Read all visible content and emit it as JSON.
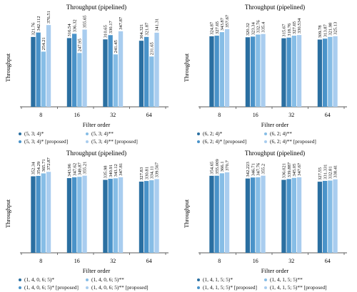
{
  "colors": [
    "#2a6fa1",
    "#4a93c9",
    "#86bde6",
    "#a9cdef"
  ],
  "chart_data": [
    {
      "type": "bar",
      "title": "Throughput (pipelined)",
      "xlabel": "Filter order",
      "ylabel": "Throughput",
      "categories": [
        "8",
        "16",
        "32",
        "64"
      ],
      "ylim": [
        0,
        400
      ],
      "series": [
        {
          "name": "(5, 3; 4)*",
          "values": [
            321.76,
            316.54,
            310.65,
            304.321
          ],
          "labels": [
            "321.76",
            "316.54",
            "310.65",
            "304.321"
          ]
        },
        {
          "name": "(5, 3; 4)* [proposed]",
          "values": [
            342.112,
            336.32,
            330.17,
            321.87
          ],
          "labels": [
            "342.112",
            "336.32",
            "330.17",
            "321.87"
          ]
        },
        {
          "name": "(5, 3; 4)**",
          "values": [
            254.21,
            247.95,
            241.45,
            231.65
          ],
          "labels": [
            "254.21",
            "247.95",
            "241.45",
            "231.65"
          ]
        },
        {
          "name": "(5, 3; 4)** [proposed]",
          "values": [
            376.51,
            355.65,
            347.87,
            341.31
          ],
          "labels": [
            "376.51",
            "355.65",
            "347.87",
            "341.31"
          ]
        }
      ]
    },
    {
      "type": "bar",
      "title": "Throughput (pipelined)",
      "xlabel": "Filter order",
      "ylabel": "Throughput",
      "categories": [
        "8",
        "16",
        "32",
        "64"
      ],
      "ylim": [
        0,
        400
      ],
      "series": [
        {
          "name": "(6, 2; 4)*",
          "values": [
            324.87,
            320.32,
            315.67,
            309.78
          ],
          "labels": [
            "324.87",
            "320.32",
            "315.67",
            "309.78"
          ]
        },
        {
          "name": "(6, 2; 4)* [proposed]",
          "values": [
            327.65,
            323.34,
            318.76,
            313.87
          ],
          "labels": [
            "327.65",
            "323.34",
            "318.76",
            "313.87"
          ]
        },
        {
          "name": "(6, 2; 4)**",
          "values": [
            343.87,
            332.76,
            327.65,
            321.98
          ],
          "labels": [
            "343.87",
            "332.76",
            "327.65",
            "321.98"
          ]
        },
        {
          "name": "(6, 2; 4)** [proposed]",
          "values": [
            357.67,
            335.4,
            330.534,
            325.13
          ],
          "labels": [
            "357.67",
            "335.4",
            "330.534",
            "325.13"
          ]
        }
      ]
    },
    {
      "type": "bar",
      "title": "Throughput (pipelined)",
      "xlabel": "Filter order",
      "ylabel": "Throughput",
      "categories": [
        "8",
        "16",
        "32",
        "64"
      ],
      "ylim": [
        0,
        400
      ],
      "series": [
        {
          "name": "(1, 4, 0, 6; 5)*",
          "values": [
            352.34,
            343.96,
            335.98,
            327.83
          ],
          "labels": [
            "352.34",
            "343.96",
            "335.98",
            "327.83"
          ]
        },
        {
          "name": "(1, 4, 0, 6; 5)* [proposed]",
          "values": [
            354.29,
            347.62,
            340.91,
            330.81
          ],
          "labels": [
            "354.29",
            "347.62",
            "340.91",
            "330.81"
          ]
        },
        {
          "name": "(1, 4, 0, 6; 5)**",
          "values": [
            365.71,
            349.87,
            343.12,
            334.11
          ],
          "labels": [
            "365.71",
            "349.87",
            "343.12",
            "334.11"
          ]
        },
        {
          "name": "(1, 4, 0, 6; 5)** [proposed]",
          "values": [
            372.87,
            355.21,
            347.81,
            339.567
          ],
          "labels": [
            "372.87",
            "355.21",
            "347.81",
            "339.567"
          ]
        }
      ]
    },
    {
      "type": "bar",
      "title": "Throughput (pipelined)",
      "xlabel": "Filter order",
      "ylabel": "Throughput",
      "categories": [
        "8",
        "16",
        "32",
        "64"
      ],
      "ylim": [
        0,
        400
      ],
      "series": [
        {
          "name": "(1, 4, 1, 5; 5)*",
          "values": [
            354.65,
            342.223,
            336.021,
            327.55
          ],
          "labels": [
            "354.65",
            "342.223",
            "336.021",
            "327.55"
          ]
        },
        {
          "name": "(1, 4, 1, 5; 5)* [proposed]",
          "values": [
            355.009,
            346.71,
            339.887,
            331.331
          ],
          "labels": [
            "355.009",
            "346.71",
            "339.887",
            "331.331"
          ]
        },
        {
          "name": "(1, 4, 1, 5; 5)**",
          "values": [
            366.1,
            347.76,
            345.05,
            332.81
          ],
          "labels": [
            "366.1",
            "347.76",
            "345.05",
            "332.81"
          ]
        },
        {
          "name": "(1, 4, 1, 5; 5)** [proposed]",
          "values": [
            370.7,
            355.2,
            347.67,
            338.41
          ],
          "labels": [
            "370.7",
            "355.2",
            "347.67",
            "338.41"
          ]
        }
      ]
    }
  ]
}
